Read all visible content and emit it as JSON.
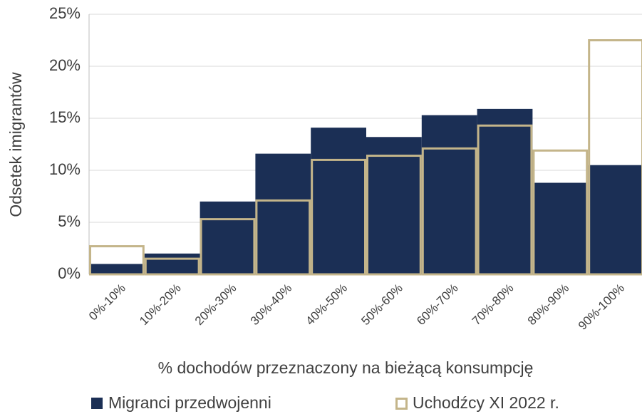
{
  "chart_data": {
    "type": "bar",
    "categories": [
      "0%-10%",
      "10%-20%",
      "20%-30%",
      "30%-40%",
      "40%-50%",
      "50%-60%",
      "60%-70%",
      "70%-80%",
      "80%-90%",
      "90%-100%"
    ],
    "series": [
      {
        "name": "Migranci przedwojenni",
        "color": "#1b2f55",
        "values": [
          1.0,
          2.0,
          7.0,
          11.6,
          14.1,
          13.2,
          15.3,
          15.9,
          8.8,
          10.5
        ]
      },
      {
        "name": "Uchodźcy XI 2022 r.",
        "color": "#c4b58a",
        "values": [
          2.7,
          1.5,
          5.3,
          7.1,
          11.0,
          11.4,
          12.1,
          14.3,
          11.9,
          22.5
        ]
      }
    ],
    "y_label": "Odsetek imigrantów",
    "x_label": "% dochodów przeznaczony na bieżącą konsumpcję",
    "ylim": [
      0,
      25
    ],
    "yticks": [
      {
        "value": 0,
        "label": "0%"
      },
      {
        "value": 5,
        "label": "5%"
      },
      {
        "value": 10,
        "label": "10%"
      },
      {
        "value": 15,
        "label": "15%"
      },
      {
        "value": 20,
        "label": "20%"
      },
      {
        "value": 25,
        "label": "25%"
      }
    ],
    "grid": true
  }
}
